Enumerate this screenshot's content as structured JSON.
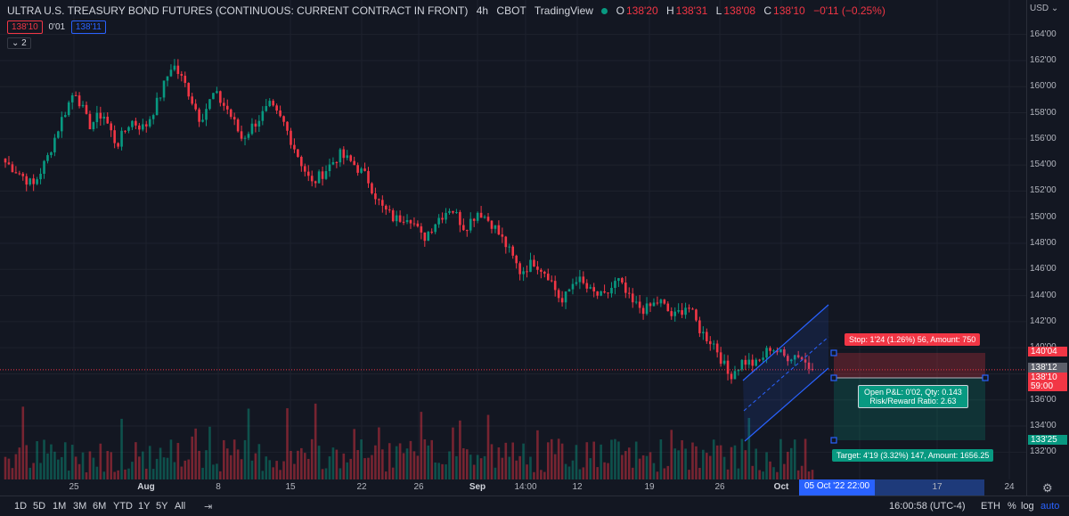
{
  "header": {
    "symbol": "ULTRA U.S. TREASURY BOND FUTURES (CONTINUOUS: CURRENT CONTRACT IN FRONT)",
    "interval": "4h",
    "exchange": "CBOT",
    "source": "TradingView",
    "open_label": "O",
    "open": "138'20",
    "high_label": "H",
    "high": "138'31",
    "low_label": "L",
    "low": "138'08",
    "close_label": "C",
    "close": "138'10",
    "change": "−0'11 (−0.25%)"
  },
  "prices": {
    "bid": "138'10",
    "spread": "0'01",
    "ask": "138'11"
  },
  "indicator_toggle": "⌄ 2",
  "price_axis": {
    "currency": "USD ⌄",
    "labels": [
      "164'00",
      "162'00",
      "160'00",
      "158'00",
      "156'00",
      "154'00",
      "152'00",
      "150'00",
      "148'00",
      "146'00",
      "144'00",
      "142'00",
      "140'00",
      "138'00",
      "136'00",
      "134'00",
      "132'00"
    ],
    "tag_stop": "140'04",
    "tag_current_gray": "138'12",
    "tag_current": "138'10",
    "tag_countdown": "59:00",
    "tag_target": "133'25"
  },
  "time_axis": {
    "labels": [
      "25",
      "Aug",
      "8",
      "15",
      "22",
      "26",
      "Sep",
      "14:00",
      "12",
      "19",
      "26",
      "Oct",
      "17",
      "24"
    ],
    "cursor": "05 Oct '22   22:00"
  },
  "position_tool": {
    "stop_label": "Stop: 1'24 (1.26%) 56, Amount: 750",
    "pnl_line1": "Open P&L: 0'02, Qty: 0.143",
    "pnl_line2": "Risk/Reward Ratio: 2.63",
    "target_label": "Target: 4'19 (3.32%) 147, Amount: 1656.25"
  },
  "bottom_bar": {
    "ranges": [
      "1D",
      "5D",
      "1M",
      "3M",
      "6M",
      "YTD",
      "1Y",
      "5Y",
      "All"
    ],
    "time": "16:00:58 (UTC-4)",
    "session": "ETH",
    "pct": "%",
    "log": "log",
    "auto": "auto"
  },
  "colors": {
    "up": "#089981",
    "down": "#f23645",
    "channel": "#2962ff",
    "background": "#131722"
  },
  "chart_data": {
    "type": "candlestick",
    "title": "ULTRA U.S. TREASURY BOND FUTURES (CONTINUOUS: CURRENT CONTRACT IN FRONT)",
    "interval": "4h",
    "ylim": [
      131,
      165
    ],
    "y_tick_labels": [
      "164'00",
      "162'00",
      "160'00",
      "158'00",
      "156'00",
      "154'00",
      "152'00",
      "150'00",
      "148'00",
      "146'00",
      "144'00",
      "142'00",
      "140'00",
      "138'00",
      "136'00",
      "134'00",
      "132'00"
    ],
    "x_tick_labels": [
      "25",
      "Aug",
      "8",
      "15",
      "22",
      "26",
      "Sep",
      "14:00",
      "12",
      "19",
      "26",
      "Oct",
      "17",
      "24"
    ],
    "close_path": [
      154.2,
      153.4,
      152.4,
      154.5,
      157.4,
      159.8,
      157.0,
      158.0,
      155.5,
      157.4,
      156.8,
      159.0,
      161.8,
      160.0,
      157.5,
      159.5,
      158.2,
      156.0,
      157.3,
      158.5,
      157.2,
      154.8,
      152.5,
      153.6,
      154.8,
      154.1,
      153.0,
      150.8,
      149.8,
      150.2,
      148.3,
      149.8,
      150.8,
      149.2,
      150.5,
      149.5,
      147.8,
      145.8,
      146.6,
      145.6,
      143.4,
      145.4,
      144.3,
      143.8,
      145.2,
      143.4,
      142.9,
      143.6,
      142.3,
      143.3,
      141.2,
      140.2,
      137.8,
      139.0,
      138.7,
      140.1,
      139.3,
      139.5,
      138.2
    ],
    "last_price": 138.3125,
    "series": [
      {
        "name": "Volume",
        "type": "bar"
      }
    ]
  }
}
